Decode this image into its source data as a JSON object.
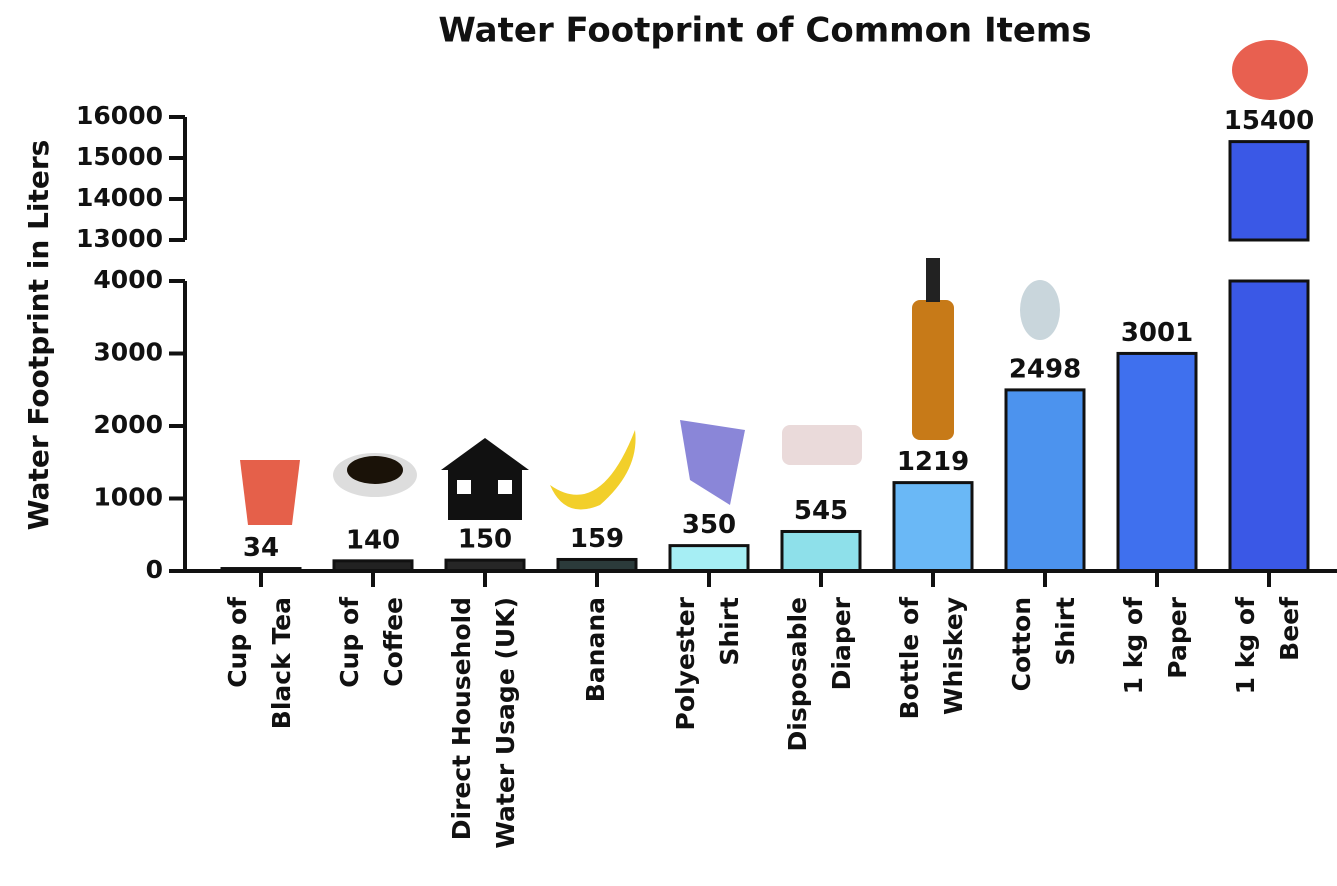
{
  "chart_data": {
    "type": "bar",
    "title": "Water Footprint of Common Items",
    "y_label": "Water Footprint in Liters",
    "categories": [
      [
        "Cup of",
        "Black Tea"
      ],
      [
        "Cup of",
        "Coffee"
      ],
      [
        "Direct Household",
        "Water Usage (UK)"
      ],
      [
        "Banana"
      ],
      [
        "Polyester",
        "Shirt"
      ],
      [
        "Disposable",
        "Diaper"
      ],
      [
        "Bottle of",
        "Whiskey"
      ],
      [
        "Cotton",
        "Shirt"
      ],
      [
        "1 kg of",
        "Paper"
      ],
      [
        "1 kg of",
        "Beef"
      ]
    ],
    "values": [
      34,
      140,
      150,
      159,
      350,
      545,
      1219,
      2498,
      3001,
      15400
    ],
    "colors": [
      "#1c1c1c",
      "#222222",
      "#262626",
      "#2b3a3a",
      "#a6eef4",
      "#8ee0ea",
      "#6ab8f6",
      "#4c93ee",
      "#3f70ee",
      "#3a58e6"
    ],
    "ylim": [
      0,
      16000
    ],
    "axis_break": [
      4000,
      13000
    ],
    "yticks": [
      0,
      1000,
      2000,
      3000,
      4000,
      13000,
      14000,
      15000,
      16000
    ]
  }
}
